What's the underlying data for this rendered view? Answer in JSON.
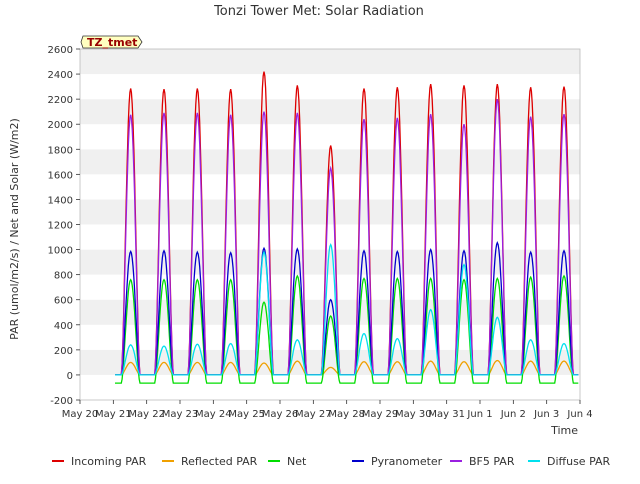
{
  "chart_data": {
    "type": "line",
    "title": "Tonzi Tower Met: Solar Radiation",
    "xlabel": "Time",
    "ylabel": "PAR (umol/m2/s) / Net and Solar (W/m2)",
    "ylim": [
      -200,
      2600
    ],
    "xlim": [
      "2024-05-20",
      "2024-06-04"
    ],
    "yticks": [
      -200,
      0,
      200,
      400,
      600,
      800,
      1000,
      1200,
      1400,
      1600,
      1800,
      2000,
      2200,
      2400,
      2600
    ],
    "xtick_dates": [
      "2024-05-20",
      "2024-05-21",
      "2024-05-22",
      "2024-05-23",
      "2024-05-24",
      "2024-05-25",
      "2024-05-26",
      "2024-05-27",
      "2024-05-28",
      "2024-05-29",
      "2024-05-30",
      "2024-05-31",
      "2024-06-01",
      "2024-06-02",
      "2024-06-03",
      "2024-06-04"
    ],
    "xtick_labels": [
      "May 20",
      "May 21",
      "May 22",
      "May 23",
      "May 24",
      "May 25",
      "May 26",
      "May 27",
      "May 28",
      "May 29",
      "May 30",
      "May 31",
      "Jun 1",
      "Jun 2",
      "Jun 3",
      "Jun 4"
    ],
    "grid": "horizontal bands",
    "legend_position": "bottom",
    "annotation": "TZ_tmet",
    "days": [
      "2024-05-21",
      "2024-05-22",
      "2024-05-23",
      "2024-05-24",
      "2024-05-25",
      "2024-05-26",
      "2024-05-27",
      "2024-05-28",
      "2024-05-29",
      "2024-05-30",
      "2024-05-31",
      "2024-06-01",
      "2024-06-02",
      "2024-06-03"
    ],
    "series": [
      {
        "name": "Incoming PAR",
        "color": "#dd0000",
        "night": 0,
        "daily_peak": [
          2285,
          2280,
          2285,
          2280,
          2420,
          2310,
          1830,
          2285,
          2295,
          2320,
          2310,
          2320,
          2295,
          2300
        ]
      },
      {
        "name": "Reflected PAR",
        "color": "#f0a000",
        "night": 0,
        "daily_peak": [
          100,
          100,
          100,
          100,
          95,
          110,
          60,
          105,
          105,
          110,
          105,
          115,
          110,
          110
        ]
      },
      {
        "name": "Net",
        "color": "#00dd00",
        "night": -65,
        "daily_peak": [
          760,
          760,
          760,
          760,
          580,
          790,
          470,
          770,
          770,
          770,
          760,
          770,
          780,
          790
        ]
      },
      {
        "name": "Pyranometer",
        "color": "#0000cc",
        "night": 0,
        "daily_peak": [
          985,
          990,
          980,
          975,
          1010,
          1005,
          600,
          990,
          985,
          1000,
          990,
          1055,
          980,
          990
        ]
      },
      {
        "name": "BF5 PAR",
        "color": "#9a1fe0",
        "night": 0,
        "daily_peak": [
          2075,
          2090,
          2090,
          2075,
          2100,
          2090,
          1650,
          2040,
          2050,
          2080,
          2000,
          2200,
          2060,
          2080
        ]
      },
      {
        "name": "Diffuse PAR",
        "color": "#00e0ee",
        "night": 0,
        "daily_peak": [
          240,
          230,
          245,
          250,
          980,
          280,
          1040,
          330,
          290,
          520,
          880,
          460,
          280,
          250
        ]
      }
    ]
  }
}
